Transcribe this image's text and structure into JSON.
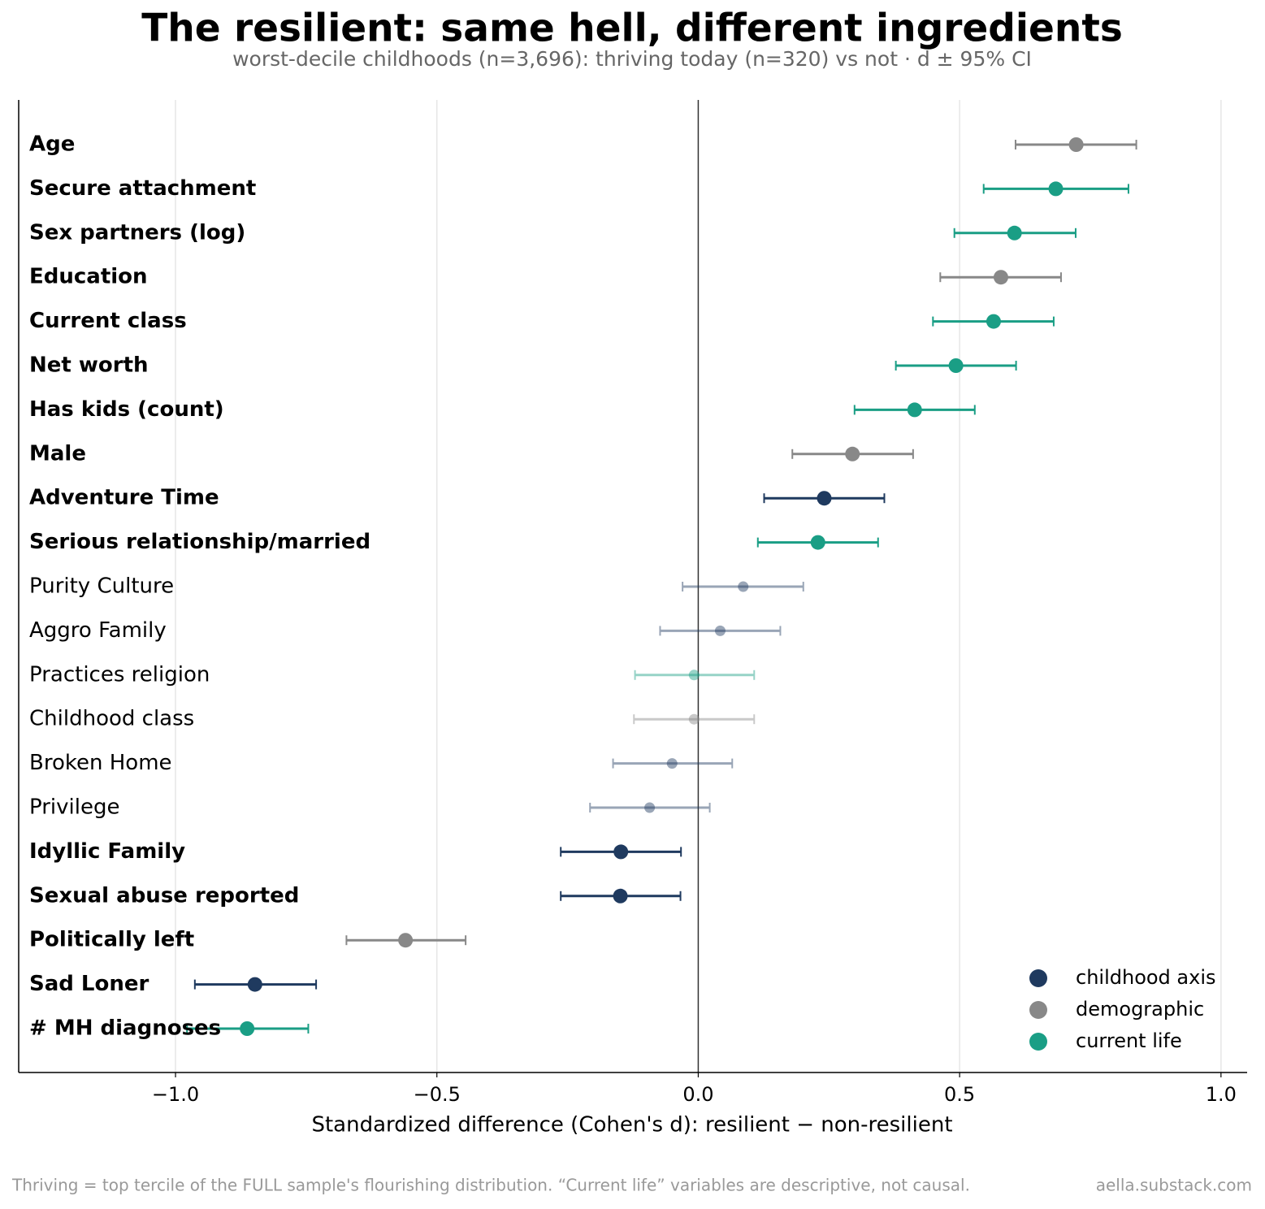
{
  "chart_data": {
    "type": "dotplot",
    "title": "The resilient: same hell, different ingredients",
    "subtitle": "worst-decile childhoods (n=3,696): thriving today (n=320) vs not · d ± 95% CI",
    "x_label": "Standardized difference (Cohen's d): resilient − non-resilient",
    "footnote": "Thriving = top tercile of the FULL sample's flourishing distribution. “Current life” variables are descriptive, not causal.",
    "source": "aella.substack.com",
    "xlim": [
      -1.3,
      1.05
    ],
    "xticks": [
      {
        "value": -1,
        "label": "−1.0"
      },
      {
        "value": -0.5,
        "label": "−0.5"
      },
      {
        "value": 0,
        "label": "0.0"
      },
      0.5,
      {
        "value": 1,
        "label": "1.0"
      }
    ],
    "grid": true,
    "legend_position": "lower right",
    "groups": [
      {
        "name": "childhood axis",
        "color": "#1f3a5f"
      },
      {
        "name": "demographic",
        "color": "#888888"
      },
      {
        "name": "current life",
        "color": "#1a9e85"
      }
    ],
    "rows": [
      {
        "label": "Age",
        "group": 1,
        "d": 0.723,
        "lo": 0.607,
        "hi": 0.838,
        "significant": true
      },
      {
        "label": "Secure attachment",
        "group": 2,
        "d": 0.684,
        "lo": 0.546,
        "hi": 0.823,
        "significant": true
      },
      {
        "label": "Sex partners (log)",
        "group": 2,
        "d": 0.605,
        "lo": 0.49,
        "hi": 0.722,
        "significant": true
      },
      {
        "label": "Education",
        "group": 1,
        "d": 0.579,
        "lo": 0.463,
        "hi": 0.694,
        "significant": true
      },
      {
        "label": "Current class",
        "group": 2,
        "d": 0.565,
        "lo": 0.449,
        "hi": 0.68,
        "significant": true
      },
      {
        "label": "Net worth",
        "group": 2,
        "d": 0.493,
        "lo": 0.378,
        "hi": 0.608,
        "significant": true
      },
      {
        "label": "Has kids (count)",
        "group": 2,
        "d": 0.414,
        "lo": 0.299,
        "hi": 0.529,
        "significant": true
      },
      {
        "label": "Male",
        "group": 1,
        "d": 0.295,
        "lo": 0.18,
        "hi": 0.411,
        "significant": true
      },
      {
        "label": "Adventure Time",
        "group": 0,
        "d": 0.241,
        "lo": 0.126,
        "hi": 0.356,
        "significant": true
      },
      {
        "label": "Serious relationship/married",
        "group": 2,
        "d": 0.229,
        "lo": 0.114,
        "hi": 0.344,
        "significant": true
      },
      {
        "label": "Purity Culture",
        "group": 0,
        "d": 0.086,
        "lo": -0.03,
        "hi": 0.201,
        "significant": false
      },
      {
        "label": "Aggro Family",
        "group": 0,
        "d": 0.042,
        "lo": -0.073,
        "hi": 0.157,
        "significant": false
      },
      {
        "label": "Practices religion",
        "group": 2,
        "d": -0.008,
        "lo": -0.121,
        "hi": 0.107,
        "significant": false
      },
      {
        "label": "Childhood class",
        "group": 1,
        "d": -0.008,
        "lo": -0.123,
        "hi": 0.107,
        "significant": false
      },
      {
        "label": "Broken Home",
        "group": 0,
        "d": -0.05,
        "lo": -0.163,
        "hi": 0.065,
        "significant": false
      },
      {
        "label": "Privilege",
        "group": 0,
        "d": -0.093,
        "lo": -0.207,
        "hi": 0.022,
        "significant": false
      },
      {
        "label": "Idyllic Family",
        "group": 0,
        "d": -0.148,
        "lo": -0.263,
        "hi": -0.033,
        "significant": true
      },
      {
        "label": "Sexual abuse reported",
        "group": 0,
        "d": -0.149,
        "lo": -0.263,
        "hi": -0.034,
        "significant": true
      },
      {
        "label": "Politically left",
        "group": 1,
        "d": -0.56,
        "lo": -0.673,
        "hi": -0.445,
        "significant": true
      },
      {
        "label": "Sad Loner",
        "group": 0,
        "d": -0.848,
        "lo": -0.963,
        "hi": -0.731,
        "significant": true
      },
      {
        "label": "# MH diagnoses",
        "group": 2,
        "d": -0.863,
        "lo": -0.978,
        "hi": -0.746,
        "significant": true
      }
    ]
  }
}
